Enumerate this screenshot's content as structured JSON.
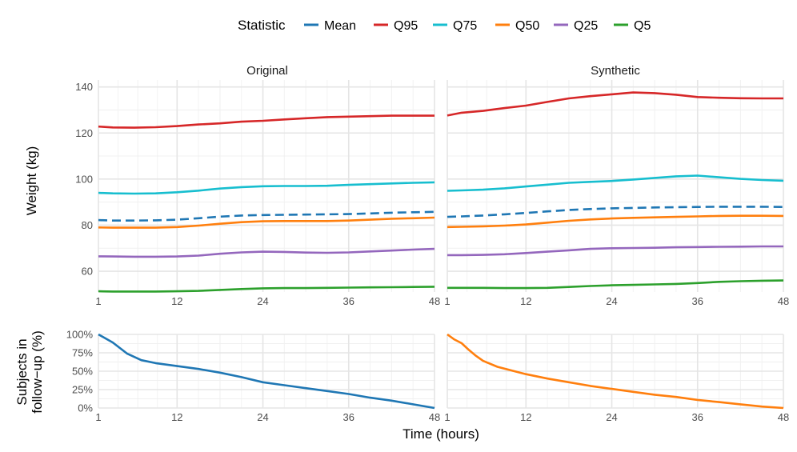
{
  "legend": {
    "title": "Statistic",
    "items": [
      {
        "label": "Mean",
        "color": "#1F77B4"
      },
      {
        "label": "Q95",
        "color": "#D62728"
      },
      {
        "label": "Q75",
        "color": "#17BECF"
      },
      {
        "label": "Q50",
        "color": "#FF7F0E"
      },
      {
        "label": "Q25",
        "color": "#9467BD"
      },
      {
        "label": "Q5",
        "color": "#2CA02C"
      }
    ]
  },
  "ylabel_top": "Weight (kg)",
  "ylabel_bottom_line1": "Subjects in",
  "ylabel_bottom_line2": "follow−up (%)",
  "xlabel": "Time (hours)",
  "chart_data": [
    {
      "type": "line",
      "panel": "weight-original",
      "title": "Original",
      "x": [
        1,
        3,
        6,
        9,
        12,
        15,
        18,
        21,
        24,
        27,
        30,
        33,
        36,
        39,
        42,
        45,
        48
      ],
      "xlim": [
        1,
        48
      ],
      "ylim": [
        51,
        143
      ],
      "xticks": [
        1,
        12,
        24,
        36,
        48
      ],
      "yticks": [
        60,
        80,
        100,
        120,
        140
      ],
      "series": [
        {
          "name": "Q95",
          "color": "#D62728",
          "dashed": false,
          "values": [
            122.8,
            122.4,
            122.3,
            122.5,
            123.0,
            123.7,
            124.2,
            124.9,
            125.3,
            125.9,
            126.4,
            126.9,
            127.1,
            127.3,
            127.5,
            127.5,
            127.5
          ]
        },
        {
          "name": "Q75",
          "color": "#17BECF",
          "dashed": false,
          "values": [
            94.0,
            93.8,
            93.7,
            93.8,
            94.3,
            95.0,
            95.9,
            96.5,
            96.9,
            97.0,
            97.0,
            97.1,
            97.5,
            97.8,
            98.1,
            98.4,
            98.6
          ]
        },
        {
          "name": "Mean",
          "color": "#1F77B4",
          "dashed": true,
          "values": [
            82.2,
            82.0,
            82.0,
            82.1,
            82.4,
            83.0,
            83.7,
            84.2,
            84.4,
            84.5,
            84.6,
            84.7,
            84.8,
            85.1,
            85.4,
            85.6,
            85.8
          ]
        },
        {
          "name": "Q50",
          "color": "#FF7F0E",
          "dashed": false,
          "values": [
            79.0,
            78.9,
            78.9,
            78.9,
            79.2,
            79.8,
            80.6,
            81.3,
            81.7,
            81.8,
            81.8,
            81.8,
            82.0,
            82.4,
            82.8,
            83.0,
            83.3
          ]
        },
        {
          "name": "Q25",
          "color": "#9467BD",
          "dashed": false,
          "values": [
            66.5,
            66.4,
            66.3,
            66.3,
            66.4,
            66.8,
            67.6,
            68.2,
            68.5,
            68.4,
            68.1,
            68.0,
            68.2,
            68.6,
            69.0,
            69.4,
            69.7
          ]
        },
        {
          "name": "Q5",
          "color": "#2CA02C",
          "dashed": false,
          "values": [
            51.3,
            51.2,
            51.2,
            51.2,
            51.3,
            51.5,
            51.9,
            52.3,
            52.6,
            52.7,
            52.7,
            52.8,
            52.9,
            53.0,
            53.1,
            53.2,
            53.3
          ]
        }
      ]
    },
    {
      "type": "line",
      "panel": "weight-synthetic",
      "title": "Synthetic",
      "x": [
        1,
        3,
        6,
        9,
        12,
        15,
        18,
        21,
        24,
        27,
        30,
        33,
        36,
        39,
        42,
        45,
        48
      ],
      "xlim": [
        1,
        48
      ],
      "ylim": [
        51,
        143
      ],
      "xticks": [
        1,
        12,
        24,
        36,
        48
      ],
      "yticks": [
        60,
        80,
        100,
        120,
        140
      ],
      "series": [
        {
          "name": "Q95",
          "color": "#D62728",
          "dashed": false,
          "values": [
            127.6,
            128.8,
            129.6,
            130.8,
            131.9,
            133.5,
            135.0,
            136.0,
            136.8,
            137.6,
            137.3,
            136.6,
            135.6,
            135.3,
            135.1,
            135.0,
            135.0
          ]
        },
        {
          "name": "Q75",
          "color": "#17BECF",
          "dashed": false,
          "values": [
            94.9,
            95.1,
            95.4,
            96.0,
            96.8,
            97.6,
            98.4,
            98.8,
            99.2,
            99.8,
            100.5,
            101.2,
            101.5,
            100.8,
            100.1,
            99.6,
            99.3
          ]
        },
        {
          "name": "Mean",
          "color": "#1F77B4",
          "dashed": true,
          "values": [
            83.6,
            83.8,
            84.2,
            84.7,
            85.3,
            86.0,
            86.6,
            87.0,
            87.3,
            87.5,
            87.7,
            87.8,
            87.9,
            88.0,
            88.0,
            88.0,
            87.9
          ]
        },
        {
          "name": "Q50",
          "color": "#FF7F0E",
          "dashed": false,
          "values": [
            79.2,
            79.3,
            79.5,
            79.8,
            80.3,
            81.1,
            81.9,
            82.5,
            82.9,
            83.2,
            83.4,
            83.6,
            83.8,
            84.0,
            84.1,
            84.1,
            84.0
          ]
        },
        {
          "name": "Q25",
          "color": "#9467BD",
          "dashed": false,
          "values": [
            67.0,
            67.0,
            67.1,
            67.4,
            67.9,
            68.5,
            69.1,
            69.7,
            70.0,
            70.1,
            70.2,
            70.4,
            70.5,
            70.6,
            70.7,
            70.8,
            70.8
          ]
        },
        {
          "name": "Q5",
          "color": "#2CA02C",
          "dashed": false,
          "values": [
            52.8,
            52.8,
            52.8,
            52.7,
            52.7,
            52.8,
            53.2,
            53.6,
            53.9,
            54.1,
            54.3,
            54.5,
            54.9,
            55.4,
            55.7,
            55.9,
            56.0
          ]
        }
      ]
    },
    {
      "type": "line",
      "panel": "followup-original",
      "x": [
        1,
        3,
        5,
        7,
        9,
        12,
        15,
        18,
        21,
        24,
        27,
        30,
        33,
        36,
        39,
        42,
        45,
        48
      ],
      "xlim": [
        1,
        48
      ],
      "ylim": [
        0,
        100
      ],
      "xticks": [
        1,
        12,
        24,
        36,
        48
      ],
      "yticks": [
        0,
        25,
        50,
        75,
        100
      ],
      "ytick_labels": [
        "0%",
        "25%",
        "50%",
        "75%",
        "100%"
      ],
      "series": [
        {
          "name": "Subjects in follow-up (%)",
          "color": "#1F77B4",
          "dashed": false,
          "values": [
            100,
            89,
            74,
            65,
            61,
            57,
            53,
            48,
            42,
            35,
            31,
            27,
            23,
            19,
            14,
            10,
            5,
            0
          ]
        }
      ]
    },
    {
      "type": "line",
      "panel": "followup-synthetic",
      "x": [
        1,
        2,
        3,
        4,
        5,
        6,
        8,
        10,
        12,
        15,
        18,
        21,
        24,
        27,
        30,
        33,
        36,
        39,
        42,
        45,
        48
      ],
      "xlim": [
        1,
        48
      ],
      "ylim": [
        0,
        100
      ],
      "xticks": [
        1,
        12,
        24,
        36,
        48
      ],
      "yticks": [
        0,
        25,
        50,
        75,
        100
      ],
      "ytick_labels": [
        "0%",
        "25%",
        "50%",
        "75%",
        "100%"
      ],
      "series": [
        {
          "name": "Subjects in follow-up (%)",
          "color": "#FF7F0E",
          "dashed": false,
          "values": [
            100,
            93,
            88,
            79,
            71,
            64,
            56,
            51,
            46,
            40,
            35,
            30,
            26,
            22,
            18,
            15,
            11,
            8,
            5,
            2,
            0
          ]
        }
      ]
    }
  ]
}
